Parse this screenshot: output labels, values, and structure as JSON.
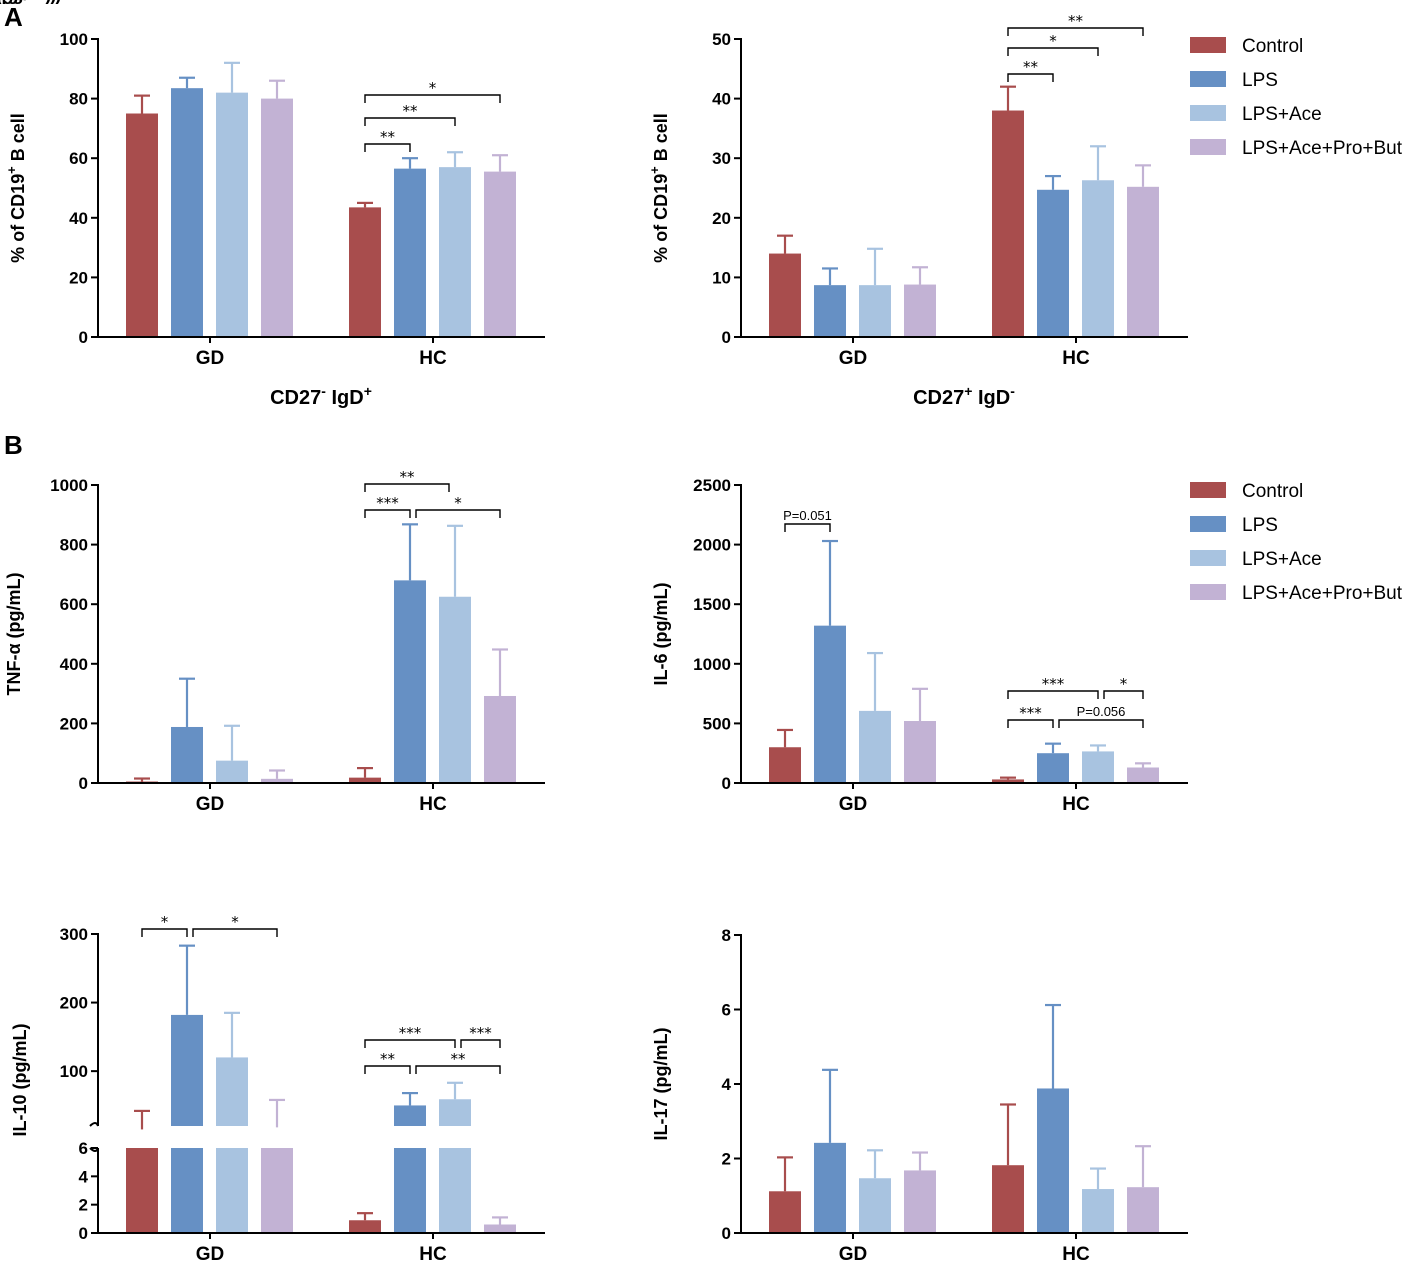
{
  "colors": {
    "Control": "#a84d4d",
    "LPS": "#6690c4",
    "LPS+Ace": "#a8c3e0",
    "LPS+Ace+Pro+But": "#c2b2d4"
  },
  "panels": {
    "A": "A",
    "B": "B"
  },
  "legends": [
    [
      "Control",
      "LPS",
      "LPS+Ace",
      "LPS+Ace+Pro+But"
    ],
    [
      "Control",
      "LPS",
      "LPS+Ace",
      "LPS+Ace+Pro+But"
    ]
  ],
  "chart_data": [
    {
      "id": "a1",
      "type": "bar",
      "ylabel": "% of CD19+ B cell",
      "xlabel": "CD27- IgD+",
      "categories": [
        "GD",
        "HC"
      ],
      "ylim": [
        0,
        100
      ],
      "yticks": [
        "0",
        "20",
        "40",
        "60",
        "80",
        "100"
      ],
      "series": [
        {
          "name": "Control",
          "values": [
            75,
            43.5
          ],
          "errors": [
            81,
            45
          ]
        },
        {
          "name": "LPS",
          "values": [
            83.5,
            56.5
          ],
          "errors": [
            87,
            60
          ]
        },
        {
          "name": "LPS+Ace",
          "values": [
            82,
            57
          ],
          "errors": [
            92,
            62
          ]
        },
        {
          "name": "LPS+Ace+Pro+But",
          "values": [
            80,
            55.5
          ],
          "errors": [
            86,
            61
          ]
        }
      ],
      "significance": [
        {
          "group": "HC",
          "from": 0,
          "to": 1,
          "label": "**"
        },
        {
          "group": "HC",
          "from": 0,
          "to": 2,
          "label": "**"
        },
        {
          "group": "HC",
          "from": 0,
          "to": 3,
          "label": "*"
        }
      ]
    },
    {
      "id": "a2",
      "type": "bar",
      "ylabel": "% of CD19+ B cell",
      "xlabel": "CD27+ IgD-",
      "categories": [
        "GD",
        "HC"
      ],
      "ylim": [
        0,
        50
      ],
      "yticks": [
        "0",
        "10",
        "20",
        "30",
        "40",
        "50"
      ],
      "series": [
        {
          "name": "Control",
          "values": [
            14,
            38
          ],
          "errors": [
            17,
            42
          ]
        },
        {
          "name": "LPS",
          "values": [
            8.7,
            24.7
          ],
          "errors": [
            11.5,
            27
          ]
        },
        {
          "name": "LPS+Ace",
          "values": [
            8.7,
            26.3
          ],
          "errors": [
            14.8,
            32
          ]
        },
        {
          "name": "LPS+Ace+Pro+But",
          "values": [
            8.8,
            25.2
          ],
          "errors": [
            11.7,
            28.8
          ]
        }
      ],
      "significance": [
        {
          "group": "HC",
          "from": 0,
          "to": 1,
          "label": "**"
        },
        {
          "group": "HC",
          "from": 0,
          "to": 2,
          "label": "*"
        },
        {
          "group": "HC",
          "from": 0,
          "to": 3,
          "label": "**"
        }
      ]
    },
    {
      "id": "b1",
      "type": "bar",
      "ylabel": "TNF-α (pg/mL)",
      "categories": [
        "GD",
        "HC"
      ],
      "ylim": [
        0,
        1000
      ],
      "yticks": [
        "0",
        "200",
        "400",
        "600",
        "800",
        "1000"
      ],
      "series": [
        {
          "name": "Control",
          "values": [
            5,
            18
          ],
          "errors": [
            15,
            50
          ]
        },
        {
          "name": "LPS",
          "values": [
            188,
            680
          ],
          "errors": [
            350,
            868
          ]
        },
        {
          "name": "LPS+Ace",
          "values": [
            75,
            625
          ],
          "errors": [
            192,
            863
          ]
        },
        {
          "name": "LPS+Ace+Pro+But",
          "values": [
            14,
            292
          ],
          "errors": [
            42,
            448
          ]
        }
      ],
      "significance": [
        {
          "group": "HC",
          "from": 0,
          "to": 1,
          "label": "***"
        },
        {
          "group": "HC",
          "from": 0,
          "to": 2,
          "label": "**"
        },
        {
          "group": "HC",
          "from": 1,
          "to": 3,
          "label": "*"
        }
      ]
    },
    {
      "id": "b2",
      "type": "bar",
      "ylabel": "IL-6 (pg/mL)",
      "categories": [
        "GD",
        "HC"
      ],
      "ylim": [
        0,
        2500
      ],
      "yticks": [
        "0",
        "500",
        "1000",
        "1500",
        "2000",
        "2500"
      ],
      "series": [
        {
          "name": "Control",
          "values": [
            300,
            30
          ],
          "errors": [
            445,
            45
          ]
        },
        {
          "name": "LPS",
          "values": [
            1320,
            250
          ],
          "errors": [
            2030,
            330
          ]
        },
        {
          "name": "LPS+Ace",
          "values": [
            605,
            265
          ],
          "errors": [
            1090,
            315
          ]
        },
        {
          "name": "LPS+Ace+Pro+But",
          "values": [
            520,
            130
          ],
          "errors": [
            790,
            165
          ]
        }
      ],
      "significance": [
        {
          "group": "GD",
          "from": 0,
          "to": 1,
          "label": "P=0.051"
        },
        {
          "group": "HC",
          "from": 0,
          "to": 1,
          "label": "***"
        },
        {
          "group": "HC",
          "from": 0,
          "to": 2,
          "label": "***"
        },
        {
          "group": "HC",
          "from": 1,
          "to": 3,
          "label": "P=0.056"
        },
        {
          "group": "HC",
          "from": 2,
          "to": 3,
          "label": "*"
        }
      ]
    },
    {
      "id": "b3",
      "type": "bar",
      "ylabel": "IL-10 (pg/mL)",
      "categories": [
        "GD",
        "HC"
      ],
      "axis_break": {
        "lower": [
          0,
          6
        ],
        "upper": [
          20,
          300
        ]
      },
      "yticks_lower": [
        "0",
        "2",
        "4",
        "6"
      ],
      "yticks_upper": [
        "100",
        "200",
        "300"
      ],
      "series": [
        {
          "name": "Control",
          "values": [
            15,
            0.9
          ],
          "errors": [
            42,
            1.4
          ]
        },
        {
          "name": "LPS",
          "values": [
            182,
            50
          ],
          "errors": [
            283,
            68
          ]
        },
        {
          "name": "LPS+Ace",
          "values": [
            120,
            59
          ],
          "errors": [
            185,
            83
          ]
        },
        {
          "name": "LPS+Ace+Pro+But",
          "values": [
            18,
            0.6
          ],
          "errors": [
            58,
            1.1
          ]
        }
      ],
      "significance": [
        {
          "group": "GD",
          "from": 0,
          "to": 1,
          "label": "*"
        },
        {
          "group": "GD",
          "from": 1,
          "to": 3,
          "label": "*"
        },
        {
          "group": "HC",
          "from": 0,
          "to": 1,
          "label": "**"
        },
        {
          "group": "HC",
          "from": 0,
          "to": 2,
          "label": "***"
        },
        {
          "group": "HC",
          "from": 1,
          "to": 3,
          "label": "**"
        },
        {
          "group": "HC",
          "from": 2,
          "to": 3,
          "label": "***"
        }
      ]
    },
    {
      "id": "b4",
      "type": "bar",
      "ylabel": "IL-17 (pg/mL)",
      "categories": [
        "GD",
        "HC"
      ],
      "ylim": [
        0,
        8
      ],
      "yticks": [
        "0",
        "2",
        "4",
        "6",
        "8"
      ],
      "series": [
        {
          "name": "Control",
          "values": [
            1.12,
            1.82
          ],
          "errors": [
            2.03,
            3.45
          ]
        },
        {
          "name": "LPS",
          "values": [
            2.42,
            3.88
          ],
          "errors": [
            4.38,
            6.12
          ]
        },
        {
          "name": "LPS+Ace",
          "values": [
            1.47,
            1.18
          ],
          "errors": [
            2.22,
            1.73
          ]
        },
        {
          "name": "LPS+Ace+Pro+But",
          "values": [
            1.68,
            1.23
          ],
          "errors": [
            2.16,
            2.33
          ]
        }
      ],
      "significance": []
    }
  ]
}
